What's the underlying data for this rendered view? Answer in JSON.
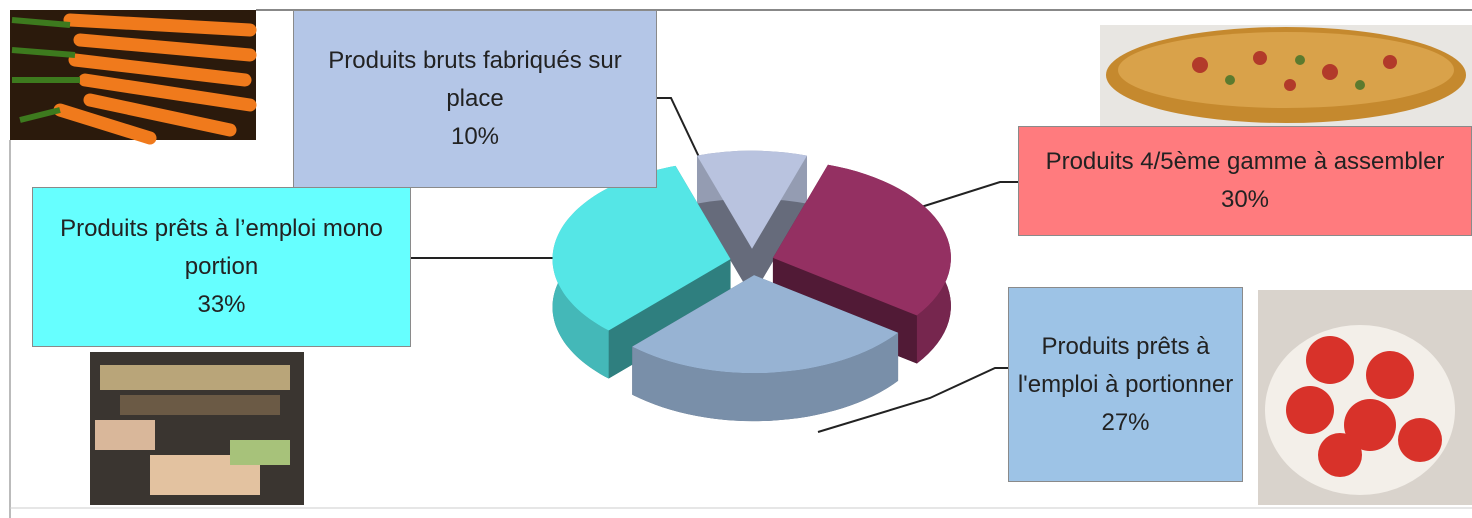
{
  "chart_data": {
    "type": "pie",
    "categories": [
      "Produits bruts fabriqués sur place",
      "Produits 4/5ème gamme à assembler",
      "Produits prêts à l'emploi à portionner",
      "Produits  prêts à l’emploi mono portion"
    ],
    "values": [
      10,
      30,
      27,
      33
    ],
    "value_labels": [
      "10%",
      "30%",
      "27%",
      "33%"
    ],
    "colors": [
      "#b9c3df",
      "#943062",
      "#97b3d3",
      "#55e6e6"
    ],
    "label_colors": [
      "#b4c6e7",
      "#ff7b7e",
      "#9dc3e6",
      "#66ffff"
    ]
  }
}
